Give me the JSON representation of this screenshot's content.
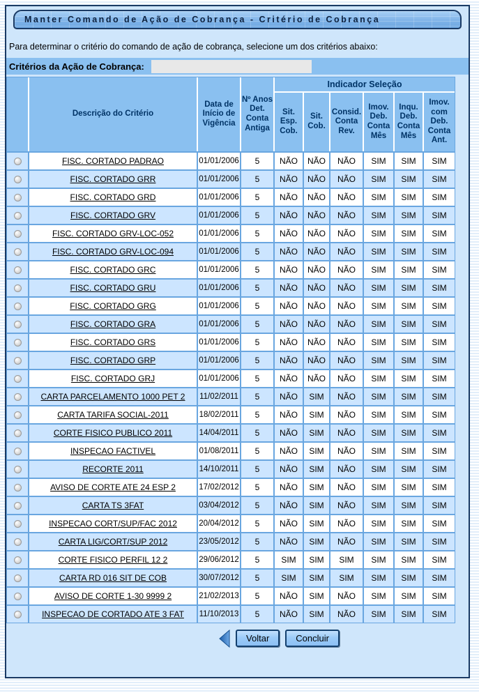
{
  "window": {
    "title": "Manter Comando de Ação de Cobrança - Critério de Cobrança"
  },
  "intro_text": "Para determinar o critério do comando de ação de cobrança, selecione um dos critérios abaixo:",
  "filter": {
    "label": "Critérios da Ação de Cobrança:",
    "value": ""
  },
  "table": {
    "group_header": "Indicador Seleção",
    "headers": {
      "radio": "",
      "desc": "Descrição do Critério",
      "start_date": "Data de Início de Vigência",
      "years": "Nº Anos Det. Conta Antiga"
    },
    "sub_headers": [
      "Sit. Esp. Cob.",
      "Sit. Cob.",
      "Consid. Conta Rev.",
      "Imov. Deb. Conta Mês",
      "Inqu. Deb. Conta Mês",
      "Imov. com Deb. Conta Ant."
    ],
    "rows": [
      {
        "desc": "FISC. CORTADO PADRAO",
        "start_date": "01/01/2006",
        "years": "5",
        "indicators": [
          "NÃO",
          "NÃO",
          "NÃO",
          "SIM",
          "SIM",
          "SIM"
        ]
      },
      {
        "desc": "FISC. CORTADO GRR",
        "start_date": "01/01/2006",
        "years": "5",
        "indicators": [
          "NÃO",
          "NÃO",
          "NÃO",
          "SIM",
          "SIM",
          "SIM"
        ]
      },
      {
        "desc": "FISC. CORTADO GRD",
        "start_date": "01/01/2006",
        "years": "5",
        "indicators": [
          "NÃO",
          "NÃO",
          "NÃO",
          "SIM",
          "SIM",
          "SIM"
        ]
      },
      {
        "desc": "FISC. CORTADO GRV",
        "start_date": "01/01/2006",
        "years": "5",
        "indicators": [
          "NÃO",
          "NÃO",
          "NÃO",
          "SIM",
          "SIM",
          "SIM"
        ]
      },
      {
        "desc": "FISC. CORTADO GRV-LOC-052",
        "start_date": "01/01/2006",
        "years": "5",
        "indicators": [
          "NÃO",
          "NÃO",
          "NÃO",
          "SIM",
          "SIM",
          "SIM"
        ]
      },
      {
        "desc": "FISC. CORTADO GRV-LOC-094",
        "start_date": "01/01/2006",
        "years": "5",
        "indicators": [
          "NÃO",
          "NÃO",
          "NÃO",
          "SIM",
          "SIM",
          "SIM"
        ]
      },
      {
        "desc": "FISC. CORTADO GRC",
        "start_date": "01/01/2006",
        "years": "5",
        "indicators": [
          "NÃO",
          "NÃO",
          "NÃO",
          "SIM",
          "SIM",
          "SIM"
        ]
      },
      {
        "desc": "FISC. CORTADO GRU",
        "start_date": "01/01/2006",
        "years": "5",
        "indicators": [
          "NÃO",
          "NÃO",
          "NÃO",
          "SIM",
          "SIM",
          "SIM"
        ]
      },
      {
        "desc": "FISC. CORTADO GRG",
        "start_date": "01/01/2006",
        "years": "5",
        "indicators": [
          "NÃO",
          "NÃO",
          "NÃO",
          "SIM",
          "SIM",
          "SIM"
        ]
      },
      {
        "desc": "FISC. CORTADO GRA",
        "start_date": "01/01/2006",
        "years": "5",
        "indicators": [
          "NÃO",
          "NÃO",
          "NÃO",
          "SIM",
          "SIM",
          "SIM"
        ]
      },
      {
        "desc": "FISC. CORTADO GRS",
        "start_date": "01/01/2006",
        "years": "5",
        "indicators": [
          "NÃO",
          "NÃO",
          "NÃO",
          "SIM",
          "SIM",
          "SIM"
        ]
      },
      {
        "desc": "FISC. CORTADO GRP",
        "start_date": "01/01/2006",
        "years": "5",
        "indicators": [
          "NÃO",
          "NÃO",
          "NÃO",
          "SIM",
          "SIM",
          "SIM"
        ]
      },
      {
        "desc": "FISC. CORTADO GRJ",
        "start_date": "01/01/2006",
        "years": "5",
        "indicators": [
          "NÃO",
          "NÃO",
          "NÃO",
          "SIM",
          "SIM",
          "SIM"
        ]
      },
      {
        "desc": "CARTA PARCELAMENTO 1000 PET 2",
        "start_date": "11/02/2011",
        "years": "5",
        "indicators": [
          "NÃO",
          "SIM",
          "NÃO",
          "SIM",
          "SIM",
          "SIM"
        ]
      },
      {
        "desc": "CARTA TARIFA SOCIAL-2011",
        "start_date": "18/02/2011",
        "years": "5",
        "indicators": [
          "NÃO",
          "SIM",
          "NÃO",
          "SIM",
          "SIM",
          "SIM"
        ]
      },
      {
        "desc": "CORTE FISICO PUBLICO 2011",
        "start_date": "14/04/2011",
        "years": "5",
        "indicators": [
          "NÃO",
          "SIM",
          "NÃO",
          "SIM",
          "SIM",
          "SIM"
        ]
      },
      {
        "desc": "INSPECAO FACTIVEL",
        "start_date": "01/08/2011",
        "years": "5",
        "indicators": [
          "NÃO",
          "SIM",
          "NÃO",
          "SIM",
          "SIM",
          "SIM"
        ]
      },
      {
        "desc": "RECORTE 2011",
        "start_date": "14/10/2011",
        "years": "5",
        "indicators": [
          "NÃO",
          "SIM",
          "NÃO",
          "SIM",
          "SIM",
          "SIM"
        ]
      },
      {
        "desc": "AVISO DE CORTE ATE 24 ESP 2",
        "start_date": "17/02/2012",
        "years": "5",
        "indicators": [
          "NÃO",
          "SIM",
          "NÃO",
          "SIM",
          "SIM",
          "SIM"
        ]
      },
      {
        "desc": "CARTA TS 3FAT",
        "start_date": "03/04/2012",
        "years": "5",
        "indicators": [
          "NÃO",
          "SIM",
          "NÃO",
          "SIM",
          "SIM",
          "SIM"
        ]
      },
      {
        "desc": "INSPECAO CORT/SUP/FAC 2012",
        "start_date": "20/04/2012",
        "years": "5",
        "indicators": [
          "NÃO",
          "SIM",
          "NÃO",
          "SIM",
          "SIM",
          "SIM"
        ]
      },
      {
        "desc": "CARTA LIG/CORT/SUP 2012",
        "start_date": "23/05/2012",
        "years": "5",
        "indicators": [
          "NÃO",
          "SIM",
          "NÃO",
          "SIM",
          "SIM",
          "SIM"
        ]
      },
      {
        "desc": "CORTE FISICO PERFIL 12 2",
        "start_date": "29/06/2012",
        "years": "5",
        "indicators": [
          "SIM",
          "SIM",
          "SIM",
          "SIM",
          "SIM",
          "SIM"
        ]
      },
      {
        "desc": "CARTA RD 016 SIT DE COB",
        "start_date": "30/07/2012",
        "years": "5",
        "indicators": [
          "SIM",
          "SIM",
          "SIM",
          "SIM",
          "SIM",
          "SIM"
        ]
      },
      {
        "desc": "AVISO DE CORTE 1-30 9999 2",
        "start_date": "21/02/2013",
        "years": "5",
        "indicators": [
          "NÃO",
          "SIM",
          "NÃO",
          "SIM",
          "SIM",
          "SIM"
        ]
      },
      {
        "desc": "INSPECAO DE CORTADO ATE 3 FAT",
        "start_date": "11/10/2013",
        "years": "5",
        "indicators": [
          "NÃO",
          "SIM",
          "NÃO",
          "SIM",
          "SIM",
          "SIM"
        ]
      }
    ]
  },
  "actions": {
    "back_label": "Voltar",
    "finish_label": "Concluir",
    "back_icon": "left-triangle-arrow"
  },
  "colors": {
    "panel_bg": "#cfe6fb",
    "panel_border": "#1a3a64",
    "header_bg": "#8ac0f0",
    "header_text": "#003366",
    "row_alt_bg": "#cce5ff",
    "grid_line": "#69a6e0",
    "input_bg": "#e8e8e8",
    "title_text": "#0d2240"
  }
}
